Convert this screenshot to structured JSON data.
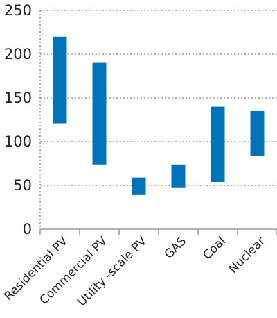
{
  "chart_data": {
    "type": "bar",
    "subtype": "floating-range",
    "categories": [
      "Residential PV",
      "Commercial PV",
      "Utility -scale PV",
      "GAS",
      "Coal",
      "Nuclear"
    ],
    "series": [
      {
        "low": [
          121,
          74,
          39,
          47,
          54,
          84
        ],
        "high": [
          220,
          190,
          59,
          74,
          140,
          135
        ]
      }
    ],
    "yticks": [
      "0",
      "50",
      "100",
      "150",
      "200",
      "250"
    ],
    "ylim": [
      0,
      250
    ],
    "grid": {
      "y": true,
      "style": "dotted"
    },
    "bar_color": "#0073BA",
    "grid_color": "#9a9a9a",
    "axis_color": "#9a9a9a"
  }
}
